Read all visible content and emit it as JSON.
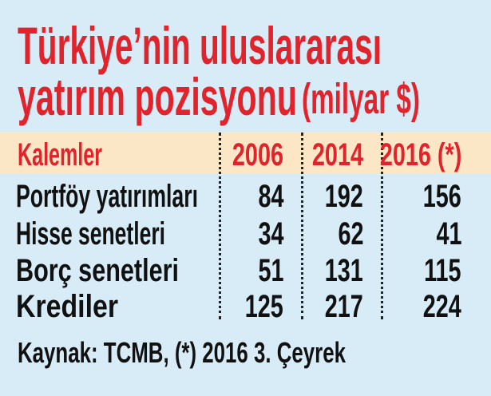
{
  "title": {
    "line1": "Türkiye’nin uluslararası",
    "line2": "yatırım pozisyonu",
    "unit": "(milyar $)"
  },
  "colors": {
    "accent": "#e1232c",
    "background": "#d7ecf7",
    "header_band": "#fbe7c6",
    "text": "#111111"
  },
  "chart_data": {
    "type": "table",
    "title": "Türkiye’nin uluslararası yatırım pozisyonu (milyar $)",
    "columns": [
      "Kalemler",
      "2006",
      "2014",
      "2016 (*)"
    ],
    "rows": [
      {
        "label": "Portföy yatırımları",
        "values": [
          "84",
          "192",
          "156"
        ]
      },
      {
        "label": "Hisse senetleri",
        "values": [
          "34",
          "62",
          "41"
        ]
      },
      {
        "label": "Borç senetleri",
        "values": [
          "51",
          "131",
          "115"
        ]
      },
      {
        "label": "Krediler",
        "values": [
          "125",
          "217",
          "224"
        ]
      }
    ],
    "source": "Kaynak: TCMB, (*) 2016 3. Çeyrek"
  }
}
